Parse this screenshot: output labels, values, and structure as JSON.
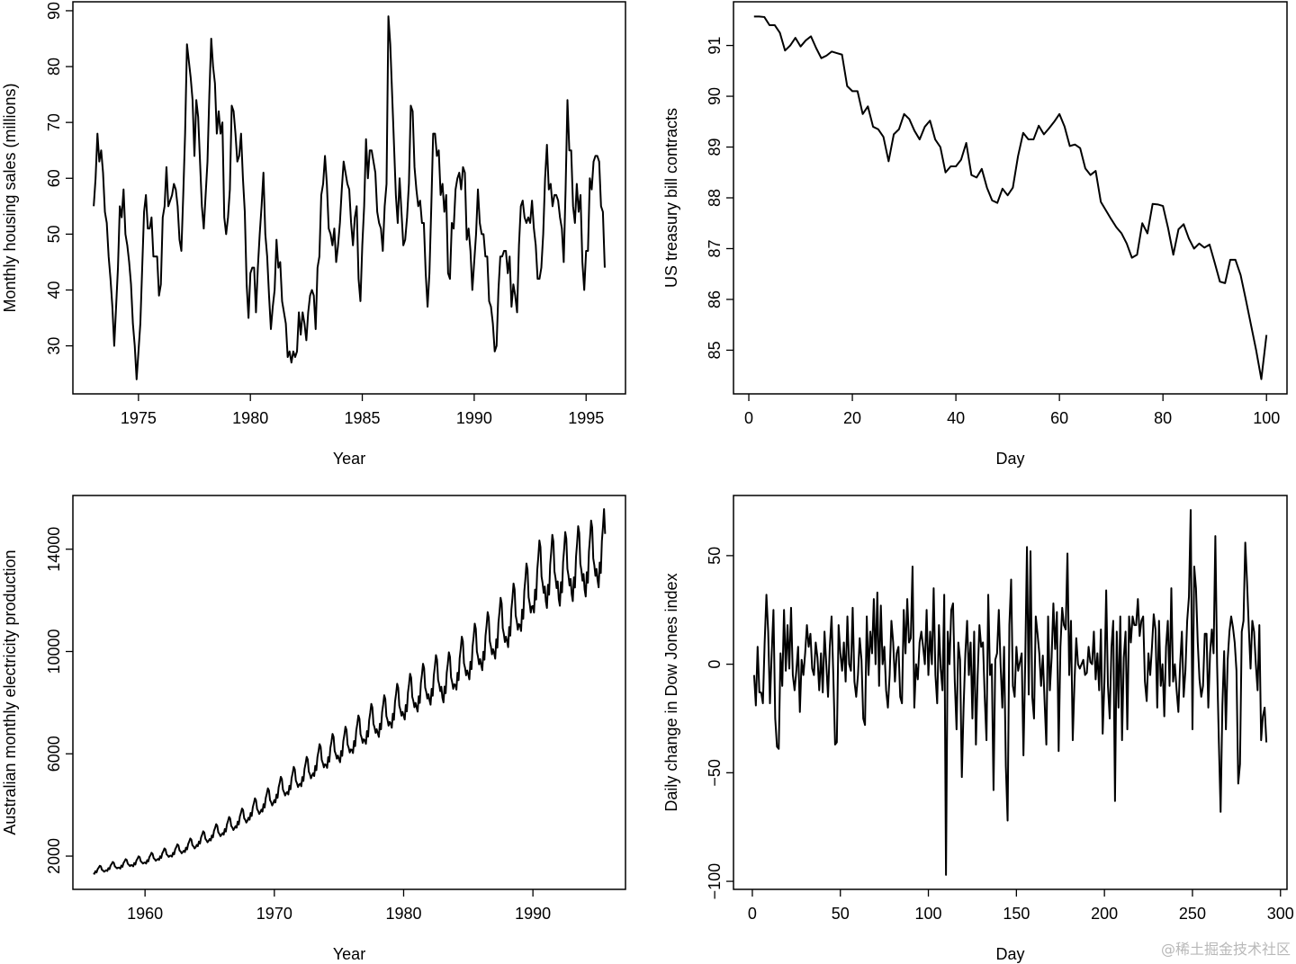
{
  "watermark": "@稀土掘金技术社区",
  "chart_data": [
    {
      "type": "line",
      "xlabel": "Year",
      "ylabel": "Monthly housing sales (millions)",
      "start": 1973,
      "frequency": 12,
      "xlim": [
        1972.07,
        1996.76
      ],
      "ylim": [
        21.4,
        91.6
      ],
      "xticks": [
        1975,
        1980,
        1985,
        1990,
        1995
      ],
      "yticks": [
        30,
        40,
        50,
        60,
        70,
        80,
        90
      ],
      "grid": false,
      "values": [
        55,
        60,
        68,
        63,
        65,
        61,
        54,
        52,
        46,
        42,
        37,
        30,
        37,
        44,
        55,
        53,
        58,
        50,
        48,
        45,
        41,
        34,
        30,
        24,
        29,
        34,
        44,
        54,
        57,
        51,
        51,
        53,
        46,
        46,
        46,
        39,
        41,
        53,
        55,
        62,
        55,
        56,
        57,
        59,
        58,
        55,
        49,
        47,
        57,
        68,
        84,
        81,
        78,
        74,
        64,
        74,
        71,
        63,
        55,
        51,
        57,
        63,
        75,
        85,
        80,
        77,
        68,
        72,
        68,
        70,
        53,
        50,
        53,
        58,
        73,
        72,
        68,
        63,
        64,
        68,
        60,
        54,
        41,
        35,
        43,
        44,
        44,
        36,
        44,
        50,
        55,
        61,
        50,
        46,
        39,
        33,
        37,
        40,
        49,
        44,
        45,
        38,
        36,
        34,
        28,
        29,
        27,
        29,
        28,
        29,
        36,
        32,
        36,
        34,
        31,
        36,
        39,
        40,
        39,
        33,
        44,
        46,
        57,
        59,
        64,
        59,
        51,
        50,
        48,
        51,
        45,
        48,
        52,
        58,
        63,
        61,
        59,
        58,
        52,
        48,
        53,
        55,
        42,
        38,
        48,
        55,
        67,
        60,
        65,
        65,
        63,
        61,
        54,
        52,
        51,
        47,
        55,
        59,
        89,
        84,
        75,
        66,
        57,
        52,
        60,
        54,
        48,
        49,
        53,
        59,
        73,
        72,
        62,
        58,
        55,
        56,
        52,
        52,
        43,
        37,
        43,
        55,
        68,
        68,
        64,
        65,
        57,
        59,
        54,
        57,
        43,
        42,
        52,
        51,
        58,
        60,
        61,
        58,
        62,
        61,
        49,
        51,
        47,
        40,
        45,
        50,
        58,
        52,
        50,
        50,
        46,
        46,
        38,
        37,
        34,
        29,
        30,
        40,
        46,
        46,
        47,
        47,
        43,
        46,
        37,
        41,
        39,
        36,
        48,
        55,
        56,
        53,
        52,
        53,
        52,
        56,
        51,
        48,
        42,
        42,
        44,
        50,
        60,
        66,
        58,
        59,
        55,
        57,
        57,
        56,
        53,
        51,
        45,
        58,
        74,
        65,
        65,
        55,
        52,
        59,
        54,
        57,
        45,
        40,
        47,
        47,
        60,
        58,
        63,
        64,
        64,
        63,
        55,
        54,
        44
      ]
    },
    {
      "type": "line",
      "xlabel": "Day",
      "ylabel": "US treasury bill contracts",
      "start": 1,
      "frequency": 1,
      "xlim": [
        -2.96,
        103.96
      ],
      "ylim": [
        84.14,
        91.86
      ],
      "xticks": [
        0,
        20,
        40,
        60,
        80,
        100
      ],
      "yticks": [
        85,
        86,
        87,
        88,
        89,
        90,
        91
      ],
      "grid": false,
      "values": [
        91.57,
        91.57,
        91.56,
        91.4,
        91.4,
        91.25,
        90.9,
        91.0,
        91.15,
        90.98,
        91.1,
        91.18,
        90.95,
        90.75,
        90.8,
        90.88,
        90.85,
        90.82,
        90.2,
        90.1,
        90.1,
        89.65,
        89.8,
        89.4,
        89.35,
        89.2,
        88.72,
        89.25,
        89.35,
        89.65,
        89.55,
        89.32,
        89.15,
        89.4,
        89.52,
        89.15,
        89.0,
        88.5,
        88.62,
        88.62,
        88.75,
        89.08,
        88.45,
        88.4,
        88.57,
        88.2,
        87.95,
        87.9,
        88.18,
        88.05,
        88.2,
        88.82,
        89.28,
        89.15,
        89.15,
        89.42,
        89.25,
        89.37,
        89.5,
        89.65,
        89.4,
        89.02,
        89.05,
        88.98,
        88.58,
        88.45,
        88.53,
        87.92,
        87.75,
        87.58,
        87.42,
        87.3,
        87.1,
        86.82,
        86.88,
        87.5,
        87.3,
        87.88,
        87.87,
        87.84,
        87.4,
        86.88,
        87.38,
        87.48,
        87.2,
        87.0,
        87.1,
        87.02,
        87.08,
        86.72,
        86.35,
        86.32,
        86.78,
        86.78,
        86.48,
        86.0,
        85.5,
        85.0,
        84.43,
        85.3
      ]
    },
    {
      "type": "line",
      "xlabel": "Year",
      "ylabel": "Australian monthly electricity production",
      "start": 1956,
      "frequency": 12,
      "xlim": [
        1954.42,
        1997.16
      ],
      "ylim": [
        700,
        16100
      ],
      "xticks": [
        1960,
        1970,
        1980,
        1990
      ],
      "yticks": [
        2000,
        6000,
        10000,
        14000
      ],
      "grid": false,
      "values": [
        1330,
        1310,
        1410,
        1360,
        1490,
        1550,
        1620,
        1600,
        1460,
        1440,
        1390,
        1420,
        1450,
        1420,
        1530,
        1490,
        1630,
        1690,
        1770,
        1740,
        1600,
        1560,
        1520,
        1550,
        1550,
        1510,
        1630,
        1580,
        1730,
        1800,
        1880,
        1850,
        1700,
        1660,
        1610,
        1650,
        1640,
        1600,
        1730,
        1670,
        1830,
        1900,
        1990,
        1960,
        1800,
        1760,
        1710,
        1740,
        1750,
        1710,
        1840,
        1790,
        1960,
        2030,
        2130,
        2090,
        1920,
        1880,
        1820,
        1860,
        1890,
        1850,
        1990,
        1930,
        2110,
        2190,
        2300,
        2260,
        2070,
        2030,
        1970,
        2010,
        2020,
        1980,
        2130,
        2070,
        2270,
        2350,
        2460,
        2420,
        2220,
        2180,
        2110,
        2160,
        2210,
        2160,
        2330,
        2260,
        2470,
        2570,
        2690,
        2640,
        2420,
        2380,
        2300,
        2350,
        2440,
        2390,
        2570,
        2490,
        2730,
        2840,
        2970,
        2920,
        2680,
        2620,
        2540,
        2600,
        2670,
        2610,
        2810,
        2730,
        2990,
        3100,
        3250,
        3190,
        2930,
        2870,
        2780,
        2840,
        2900,
        2840,
        3060,
        2960,
        3240,
        3370,
        3530,
        3470,
        3180,
        3120,
        3020,
        3090,
        3170,
        3110,
        3350,
        3240,
        3550,
        3690,
        3860,
        3800,
        3480,
        3420,
        3310,
        3380,
        3500,
        3420,
        3690,
        3570,
        3910,
        4070,
        4260,
        4180,
        3840,
        3760,
        3650,
        3720,
        3820,
        3740,
        4030,
        3900,
        4270,
        4440,
        4650,
        4570,
        4190,
        4110,
        3980,
        4070,
        4190,
        4100,
        4410,
        4280,
        4690,
        4870,
        5100,
        5010,
        4600,
        4500,
        4370,
        4460,
        4510,
        4410,
        4750,
        4610,
        5050,
        5240,
        5490,
        5390,
        4950,
        4850,
        4700,
        4800,
        4830,
        4730,
        5090,
        4940,
        5410,
        5620,
        5880,
        5780,
        5300,
        5200,
        5040,
        5150,
        5240,
        5130,
        5530,
        5360,
        5870,
        6100,
        6380,
        6270,
        5760,
        5640,
        5470,
        5590,
        5570,
        5450,
        5870,
        5690,
        6230,
        6470,
        6780,
        6660,
        6110,
        5990,
        5810,
        5930,
        5800,
        5670,
        6110,
        5920,
        6490,
        6740,
        7060,
        6930,
        6360,
        6240,
        6050,
        6170,
        6160,
        6030,
        6500,
        6300,
        6900,
        7170,
        7500,
        7370,
        6770,
        6630,
        6430,
        6570,
        6530,
        6390,
        6890,
        6670,
        7310,
        7600,
        7950,
        7810,
        7170,
        7030,
        6820,
        6960,
        6810,
        6660,
        7180,
        6960,
        7620,
        7920,
        8290,
        8140,
        7470,
        7330,
        7100,
        7250,
        7180,
        7020,
        7570,
        7330,
        8030,
        8350,
        8740,
        8580,
        7880,
        7720,
        7490,
        7640,
        7500,
        7340,
        7910,
        7660,
        8390,
        8720,
        9130,
        8970,
        8230,
        8070,
        7820,
        7990,
        7820,
        7650,
        8250,
        7990,
        8760,
        9100,
        9520,
        9350,
        8590,
        8420,
        8160,
        8330,
        8100,
        7920,
        8540,
        8270,
        9060,
        9420,
        9860,
        9680,
        8890,
        8710,
        8450,
        8620,
        8190,
        8010,
        8630,
        8370,
        9170,
        9520,
        9970,
        9790,
        8990,
        8810,
        8540,
        8720,
        8690,
        8510,
        9170,
        8880,
        9730,
        10110,
        10580,
        10400,
        9540,
        9360,
        9070,
        9260,
        9110,
        8910,
        9600,
        9310,
        10200,
        10590,
        11090,
        10890,
        10000,
        9800,
        9500,
        9700,
        9480,
        9270,
        9990,
        9680,
        10610,
        11020,
        11540,
        11330,
        10400,
        10200,
        9890,
        10090,
        9940,
        9720,
        10480,
        10150,
        11120,
        11560,
        12100,
        11880,
        10910,
        10690,
        10370,
        10580,
        10400,
        10170,
        10960,
        10620,
        11640,
        12090,
        12660,
        12430,
        11410,
        11190,
        10850,
        11070,
        11040,
        10800,
        11640,
        11280,
        12360,
        12840,
        13440,
        13200,
        12120,
        11880,
        11520,
        11760,
        11780,
        11520,
        12420,
        12030,
        13180,
        13700,
        14340,
        14080,
        12930,
        12670,
        12290,
        12540,
        11960,
        11700,
        12610,
        12220,
        13390,
        13910,
        14560,
        14300,
        13130,
        12870,
        12480,
        12740,
        12050,
        11790,
        12710,
        12310,
        13490,
        14020,
        14670,
        14410,
        13230,
        12970,
        12580,
        12840,
        12240,
        11970,
        12900,
        12500,
        13700,
        14230,
        14900,
        14630,
        13430,
        13170,
        12770,
        13030,
        12420,
        12150,
        13100,
        12690,
        13910,
        14450,
        15120,
        14850,
        13640,
        13370,
        12960,
        13230,
        12790,
        12510,
        13480,
        13070,
        14320,
        14870,
        15570,
        14600
      ]
    },
    {
      "type": "line",
      "xlabel": "Day",
      "ylabel": "Daily change in Dow Jones index",
      "start": 1,
      "frequency": 1,
      "xlim": [
        -10.7,
        303.7
      ],
      "ylim": [
        -103.7,
        77.7
      ],
      "xticks": [
        0,
        50,
        100,
        150,
        200,
        250,
        300
      ],
      "yticks": [
        -100,
        -50,
        0,
        50
      ],
      "ytick_labels": [
        "−100",
        "−50",
        "0",
        "50"
      ],
      "grid": false,
      "values": [
        -5,
        -19,
        8,
        -13,
        -13,
        -18,
        10,
        32,
        15,
        -18,
        5,
        25,
        -25,
        -38,
        -39,
        5,
        -10,
        25,
        -3,
        18,
        -2,
        26,
        -5,
        -12,
        -3,
        8,
        -22,
        2,
        -5,
        5,
        18,
        8,
        14,
        -2,
        -5,
        10,
        3,
        -12,
        5,
        -13,
        15,
        0,
        -15,
        8,
        22,
        -5,
        -37,
        -36,
        18,
        5,
        -3,
        10,
        -8,
        22,
        0,
        -3,
        26,
        -8,
        -15,
        -5,
        12,
        2,
        -25,
        -28,
        22,
        -5,
        15,
        5,
        30,
        0,
        33,
        -10,
        27,
        0,
        8,
        -12,
        -20,
        -5,
        20,
        10,
        -8,
        5,
        8,
        -15,
        -18,
        25,
        5,
        30,
        10,
        12,
        45,
        -20,
        0,
        -7,
        10,
        15,
        8,
        0,
        25,
        -5,
        15,
        0,
        35,
        -5,
        -18,
        18,
        -2,
        -12,
        32,
        -97,
        15,
        0,
        25,
        28,
        -8,
        -30,
        10,
        2,
        -52,
        -20,
        5,
        20,
        -5,
        10,
        -25,
        15,
        -37,
        -5,
        18,
        8,
        10,
        -15,
        -35,
        32,
        -5,
        0,
        -58,
        2,
        5,
        25,
        0,
        -20,
        8,
        -47,
        -72,
        18,
        39,
        -10,
        -15,
        8,
        -3,
        1,
        5,
        -42,
        1,
        54,
        -14,
        52,
        -15,
        -25,
        22,
        14,
        5,
        -10,
        4,
        -17,
        -37,
        22,
        -12,
        3,
        28,
        7,
        24,
        -40,
        8,
        26,
        18,
        16,
        51,
        -5,
        20,
        -35,
        -8,
        12,
        0,
        -2,
        0,
        2,
        -5,
        -4,
        8,
        1,
        0,
        15,
        -7,
        5,
        -12,
        16,
        -32,
        -8,
        34,
        -10,
        -25,
        8,
        20,
        -63,
        15,
        -20,
        22,
        -35,
        3,
        15,
        -30,
        22,
        10,
        22,
        18,
        18,
        30,
        13,
        20,
        22,
        -8,
        -17,
        5,
        -5,
        8,
        23,
        16,
        -20,
        20,
        -10,
        0,
        -24,
        8,
        20,
        -10,
        35,
        -8,
        0,
        -12,
        -22,
        0,
        15,
        -15,
        -3,
        20,
        31,
        71,
        -30,
        45,
        35,
        10,
        -7,
        -15,
        -10,
        14,
        14,
        -20,
        5,
        16,
        5,
        59,
        0,
        -36,
        -68,
        -19,
        6,
        -30,
        2,
        15,
        22,
        17,
        10,
        -3,
        -55,
        -46,
        15,
        20,
        56,
        38,
        17,
        -2,
        20,
        15,
        0,
        -12,
        18,
        -35,
        -24,
        -20,
        -36
      ]
    }
  ]
}
